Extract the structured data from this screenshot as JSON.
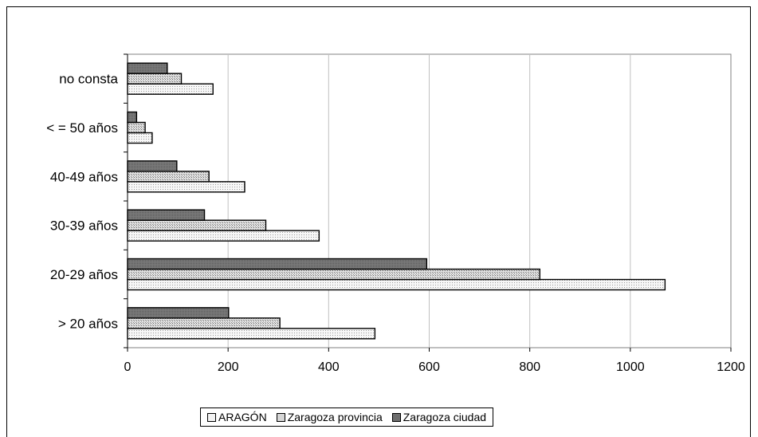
{
  "chart_data": {
    "type": "bar",
    "orientation": "horizontal",
    "categories": [
      "> 20 años",
      "20-29 años",
      "30-39 años",
      "40-49 años",
      "< = 50 años",
      "no consta"
    ],
    "series": [
      {
        "name": "ARAGÓN",
        "values": [
          492,
          1069,
          381,
          233,
          49,
          170
        ],
        "color": "#efefef"
      },
      {
        "name": "Zaragoza provincia",
        "values": [
          303,
          820,
          275,
          162,
          35,
          107
        ],
        "color": "#d9d9d9"
      },
      {
        "name": "Zaragoza ciudad",
        "values": [
          201,
          595,
          153,
          98,
          18,
          79
        ],
        "color": "#808080"
      }
    ],
    "xlim": [
      0,
      1200
    ],
    "xticks": [
      "0",
      "200",
      "400",
      "600",
      "800",
      "1000",
      "1200"
    ],
    "grid": "vertical",
    "legend": "bottom"
  }
}
